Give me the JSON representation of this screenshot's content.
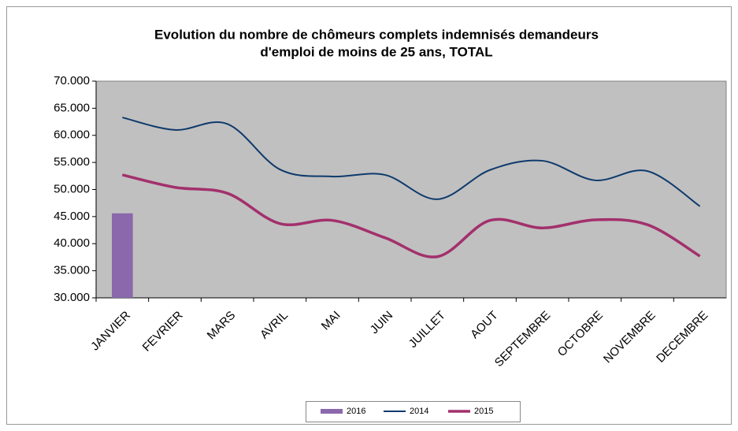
{
  "chart_data": {
    "type": "line",
    "title": [
      "Evolution du nombre de chômeurs complets indemnisés demandeurs",
      "d'emploi de moins de 25 ans, TOTAL"
    ],
    "categories": [
      "JANVIER",
      "FEVRIER",
      "MARS",
      "AVRIL",
      "MAI",
      "JUIN",
      "JUILLET",
      "AOUT",
      "SEPTEMBRE",
      "OCTOBRE",
      "NOVEMBRE",
      "DECEMBRE"
    ],
    "series": [
      {
        "name": "2016",
        "type": "bar",
        "color": "#8a68ab",
        "values": [
          45600,
          null,
          null,
          null,
          null,
          null,
          null,
          null,
          null,
          null,
          null,
          null
        ]
      },
      {
        "name": "2014",
        "type": "line",
        "color": "#0e3a6c",
        "values": [
          63300,
          61000,
          62100,
          53700,
          52400,
          52700,
          48200,
          53600,
          55300,
          51700,
          53400,
          46900
        ]
      },
      {
        "name": "2015",
        "type": "line",
        "color": "#a3306c",
        "values": [
          52700,
          50400,
          49300,
          43700,
          44300,
          41100,
          37600,
          44300,
          42900,
          44400,
          43500,
          37700
        ]
      }
    ],
    "ylim": [
      30000,
      70000
    ],
    "yticks": [
      {
        "value": 30000,
        "label": "30.000"
      },
      {
        "value": 35000,
        "label": "35.000"
      },
      {
        "value": 40000,
        "label": "40.000"
      },
      {
        "value": 45000,
        "label": "45.000"
      },
      {
        "value": 50000,
        "label": "50.000"
      },
      {
        "value": 55000,
        "label": "55.000"
      },
      {
        "value": 60000,
        "label": "60.000"
      },
      {
        "value": 65000,
        "label": "65.000"
      },
      {
        "value": 70000,
        "label": "70.000"
      }
    ],
    "smooth": true,
    "legend": "bottom",
    "plot_background": "#c0c0c0"
  }
}
